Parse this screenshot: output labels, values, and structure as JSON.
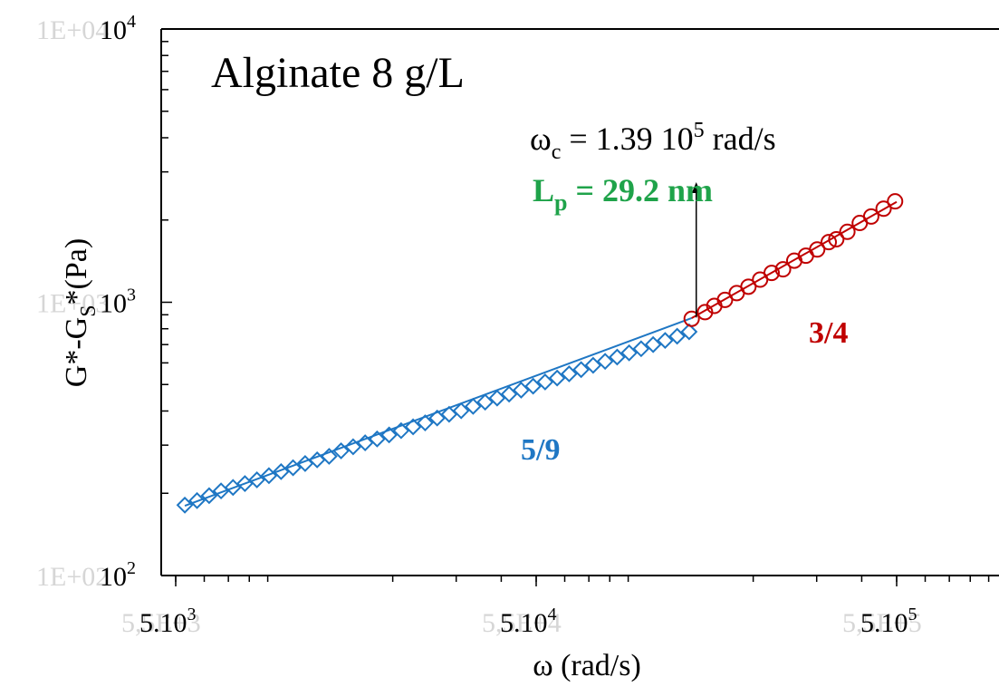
{
  "chart_data": {
    "type": "scatter",
    "title": "Alginate 8 g/L",
    "xlabel": "ω (rad/s)",
    "ylabel": "G*-G",
    "ylabel_sub": "S",
    "ylabel_end": "*(Pa)",
    "x_scale": "log",
    "y_scale": "log",
    "xlim": [
      3500,
      650000
    ],
    "ylim": [
      100,
      10000
    ],
    "x_ticks": [
      {
        "value": 5000,
        "label": "5.10",
        "sup": "3",
        "ghost": "5,5E+3"
      },
      {
        "value": 50000,
        "label": "5.10",
        "sup": "4",
        "ghost": "5,5E+4"
      },
      {
        "value": 500000,
        "label": "5.10",
        "sup": "5",
        "ghost": "5,5E+5"
      }
    ],
    "y_ticks": [
      {
        "value": 100,
        "label": "10",
        "sup": "2",
        "ghost": "1E+02"
      },
      {
        "value": 1000,
        "label": "10",
        "sup": "3",
        "ghost": "1E+03"
      },
      {
        "value": 10000,
        "label": "10",
        "sup": "4",
        "ghost": "1E+04"
      }
    ],
    "grid": false,
    "series": [
      {
        "color": "#1f77c4",
        "marker": "diamond",
        "x": [
          5300,
          5730,
          6190,
          6680,
          7210,
          7780,
          8400,
          9070,
          9800,
          10580,
          11430,
          12340,
          13320,
          14380,
          15530,
          16770,
          18100,
          19540,
          21100,
          22780,
          24600,
          26560,
          28670,
          30960,
          33420,
          36090,
          38960,
          42060,
          45420,
          49030,
          52940,
          57160,
          61710,
          66630,
          71940,
          77670,
          83860,
          90540,
          97750,
          105540,
          113940,
          123020,
          132820
        ],
        "y": [
          181,
          188,
          196,
          204,
          210,
          217,
          224,
          232,
          240,
          248,
          257,
          265,
          273,
          286,
          296,
          306,
          316,
          327,
          339,
          350,
          362,
          377,
          389,
          401,
          416,
          431,
          446,
          461,
          477,
          493,
          511,
          528,
          547,
          567,
          588,
          608,
          630,
          653,
          676,
          700,
          725,
          751,
          780
        ]
      },
      {
        "color": "#c00000",
        "marker": "circle",
        "x": [
          135000,
          147000,
          156000,
          167000,
          180000,
          194000,
          209000,
          225000,
          242000,
          260000,
          280000,
          301000,
          324000,
          340000,
          365000,
          395000,
          425000,
          460000,
          495000
        ],
        "y": [
          870,
          920,
          970,
          1020,
          1080,
          1140,
          1210,
          1280,
          1320,
          1420,
          1480,
          1560,
          1660,
          1700,
          1810,
          1950,
          2060,
          2200,
          2340
        ]
      }
    ],
    "fit_lines": [
      {
        "color": "#1f77c4",
        "x": [
          5300,
          135000
        ],
        "y": [
          180,
          875
        ]
      },
      {
        "color": "#c00000",
        "x": [
          135000,
          500000
        ],
        "y": [
          875,
          2330
        ]
      }
    ],
    "annotations": {
      "omega_c": {
        "prefix": "ω",
        "sub": "c",
        "mid": " = 1.39 10",
        "sup": "5",
        "suffix": " rad/s"
      },
      "lp": {
        "prefix": "L",
        "sub": "p",
        "suffix": " = 29.2 nm",
        "color": "#1fa34a"
      },
      "slope_low": {
        "text": "5/9",
        "color": "#1f77c4"
      },
      "slope_high": {
        "text": "3/4",
        "color": "#c00000"
      },
      "arrow": {
        "x": 139000,
        "y_from": 880,
        "y_to": 2750
      }
    }
  }
}
